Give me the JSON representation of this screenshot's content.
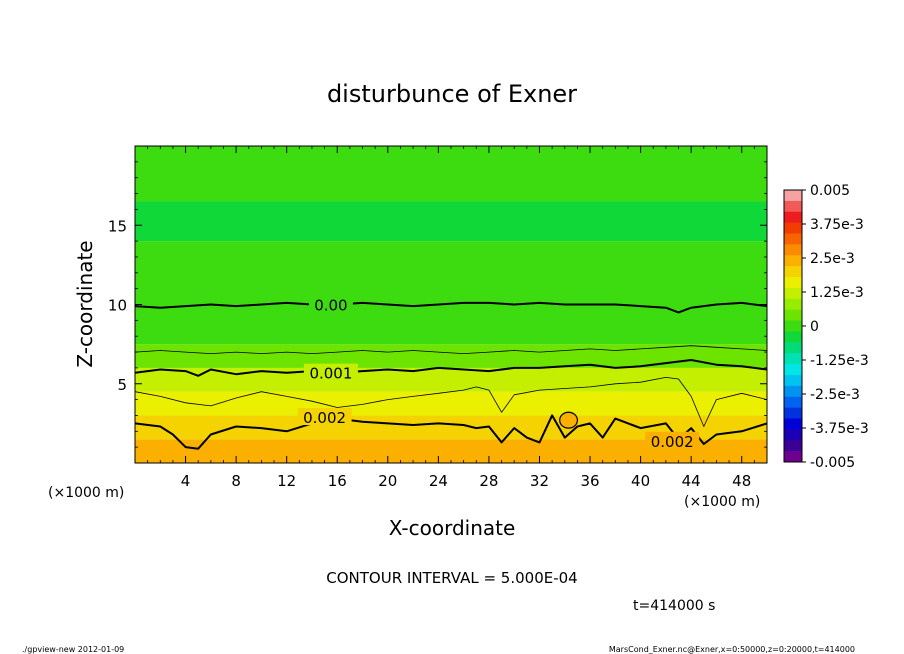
{
  "chart_data": {
    "type": "heatmap",
    "title": "disturbunce of Exner",
    "xlabel": "X-coordinate",
    "ylabel": "Z-coordinate",
    "x_unit": "(×1000 m)",
    "y_unit": "(×1000 m)",
    "xlim": [
      0,
      50
    ],
    "ylim": [
      0,
      20
    ],
    "x_ticks": [
      4,
      8,
      12,
      16,
      20,
      24,
      28,
      32,
      36,
      40,
      44,
      48
    ],
    "y_ticks": [
      5,
      10,
      15
    ],
    "contour_interval_text": "CONTOUR INTERVAL = 5.000E-04",
    "time_text": "t=414000 s",
    "colorbar": {
      "range": [
        -0.005,
        0.005
      ],
      "labels": [
        "0.005",
        "3.75e-3",
        "2.5e-3",
        "1.25e-3",
        "0",
        "-1.25e-3",
        "-2.5e-3",
        "-3.75e-3",
        "-0.005"
      ],
      "colors": [
        "#f6a2a2",
        "#f25a5a",
        "#ee1c1c",
        "#f23c00",
        "#f86400",
        "#fb8c00",
        "#fbb000",
        "#f5d300",
        "#eaf000",
        "#c4f000",
        "#98ec00",
        "#6ce400",
        "#3ddc10",
        "#10d838",
        "#00dc78",
        "#00e2b4",
        "#00e6e6",
        "#00c4f0",
        "#0094f0",
        "#0064f0",
        "#0032e0",
        "#0000d8",
        "#1e00b4",
        "#3c0096",
        "#6e0090"
      ]
    },
    "contour_labels": [
      {
        "text": "0.00",
        "x": 15.5,
        "z": 10.0
      },
      {
        "text": "0.001",
        "x": 15.5,
        "z": 5.7
      },
      {
        "text": "0.002",
        "x": 15.0,
        "z": 2.9
      },
      {
        "text": "0.002",
        "x": 42.5,
        "z": 1.4
      }
    ],
    "field_bands": [
      {
        "z_from": 0.0,
        "z_to": 1.5,
        "value": 0.0023
      },
      {
        "z_from": 1.5,
        "z_to": 3.0,
        "value": 0.002
      },
      {
        "z_from": 3.0,
        "z_to": 4.5,
        "value": 0.0015
      },
      {
        "z_from": 4.5,
        "z_to": 6.0,
        "value": 0.0011
      },
      {
        "z_from": 6.0,
        "z_to": 7.5,
        "value": 0.0006
      },
      {
        "z_from": 7.5,
        "z_to": 10.0,
        "value": 0.0002
      },
      {
        "z_from": 10.0,
        "z_to": 14.0,
        "value": -0.0001
      },
      {
        "z_from": 14.0,
        "z_to": 16.5,
        "value": -0.0003
      },
      {
        "z_from": 16.5,
        "z_to": 20.0,
        "value": -0.0001
      }
    ],
    "contours": [
      {
        "level": 0.0,
        "bold": true,
        "points": [
          [
            0,
            9.9
          ],
          [
            2,
            9.8
          ],
          [
            4,
            9.9
          ],
          [
            6,
            10.0
          ],
          [
            8,
            9.9
          ],
          [
            10,
            10.0
          ],
          [
            12,
            10.1
          ],
          [
            14,
            10.0
          ],
          [
            16,
            10.0
          ],
          [
            18,
            10.1
          ],
          [
            20,
            10.0
          ],
          [
            22,
            9.9
          ],
          [
            24,
            10.0
          ],
          [
            26,
            10.1
          ],
          [
            28,
            10.1
          ],
          [
            30,
            10.0
          ],
          [
            32,
            10.1
          ],
          [
            34,
            10.0
          ],
          [
            36,
            10.0
          ],
          [
            38,
            10.0
          ],
          [
            40,
            9.9
          ],
          [
            42,
            9.8
          ],
          [
            43,
            9.5
          ],
          [
            44,
            9.8
          ],
          [
            46,
            10.0
          ],
          [
            48,
            10.1
          ],
          [
            50,
            9.9
          ]
        ]
      },
      {
        "level": 0.0005,
        "bold": false,
        "points": [
          [
            0,
            7.0
          ],
          [
            2,
            7.1
          ],
          [
            4,
            7.0
          ],
          [
            6,
            6.9
          ],
          [
            8,
            7.0
          ],
          [
            10,
            6.9
          ],
          [
            12,
            7.0
          ],
          [
            14,
            6.9
          ],
          [
            16,
            7.0
          ],
          [
            18,
            7.1
          ],
          [
            20,
            7.0
          ],
          [
            22,
            7.1
          ],
          [
            24,
            7.0
          ],
          [
            26,
            6.9
          ],
          [
            28,
            7.0
          ],
          [
            30,
            7.1
          ],
          [
            32,
            7.0
          ],
          [
            34,
            7.1
          ],
          [
            36,
            7.2
          ],
          [
            38,
            7.1
          ],
          [
            40,
            7.2
          ],
          [
            42,
            7.3
          ],
          [
            44,
            7.4
          ],
          [
            46,
            7.3
          ],
          [
            48,
            7.2
          ],
          [
            50,
            7.1
          ]
        ]
      },
      {
        "level": 0.001,
        "bold": true,
        "points": [
          [
            0,
            5.7
          ],
          [
            2,
            5.9
          ],
          [
            4,
            5.8
          ],
          [
            5,
            5.5
          ],
          [
            6,
            5.9
          ],
          [
            8,
            5.6
          ],
          [
            10,
            5.8
          ],
          [
            12,
            5.7
          ],
          [
            14,
            5.8
          ],
          [
            16,
            5.7
          ],
          [
            18,
            5.8
          ],
          [
            20,
            5.9
          ],
          [
            22,
            5.8
          ],
          [
            24,
            6.0
          ],
          [
            26,
            5.9
          ],
          [
            28,
            5.8
          ],
          [
            30,
            6.0
          ],
          [
            32,
            6.0
          ],
          [
            34,
            6.1
          ],
          [
            36,
            6.2
          ],
          [
            38,
            6.0
          ],
          [
            40,
            6.1
          ],
          [
            42,
            6.3
          ],
          [
            44,
            6.5
          ],
          [
            46,
            6.2
          ],
          [
            48,
            6.1
          ],
          [
            50,
            5.9
          ]
        ]
      },
      {
        "level": 0.0015,
        "bold": false,
        "points": [
          [
            0,
            4.5
          ],
          [
            2,
            4.2
          ],
          [
            4,
            3.8
          ],
          [
            6,
            3.6
          ],
          [
            8,
            4.1
          ],
          [
            10,
            4.5
          ],
          [
            12,
            4.2
          ],
          [
            14,
            3.9
          ],
          [
            16,
            3.5
          ],
          [
            18,
            3.7
          ],
          [
            20,
            4.0
          ],
          [
            22,
            4.2
          ],
          [
            24,
            4.4
          ],
          [
            26,
            4.6
          ],
          [
            27,
            4.8
          ],
          [
            28,
            4.6
          ],
          [
            29,
            3.2
          ],
          [
            30,
            4.3
          ],
          [
            32,
            4.6
          ],
          [
            34,
            4.7
          ],
          [
            36,
            4.8
          ],
          [
            38,
            5.0
          ],
          [
            40,
            5.1
          ],
          [
            42,
            5.4
          ],
          [
            43,
            5.3
          ],
          [
            44,
            4.2
          ],
          [
            45,
            2.3
          ],
          [
            46,
            4.0
          ],
          [
            48,
            4.4
          ],
          [
            50,
            4.0
          ]
        ]
      },
      {
        "level": 0.002,
        "bold": true,
        "points": [
          [
            0,
            2.5
          ],
          [
            2,
            2.3
          ],
          [
            3,
            1.8
          ],
          [
            4,
            1.0
          ],
          [
            5,
            0.9
          ],
          [
            6,
            1.8
          ],
          [
            8,
            2.3
          ],
          [
            10,
            2.2
          ],
          [
            12,
            2.0
          ],
          [
            14,
            2.5
          ],
          [
            16,
            2.8
          ],
          [
            18,
            2.6
          ],
          [
            20,
            2.5
          ],
          [
            22,
            2.4
          ],
          [
            24,
            2.5
          ],
          [
            26,
            2.4
          ],
          [
            27,
            2.2
          ],
          [
            28,
            2.3
          ],
          [
            29,
            1.3
          ],
          [
            30,
            2.2
          ],
          [
            31,
            1.6
          ],
          [
            32,
            1.3
          ],
          [
            33,
            3.0
          ],
          [
            34,
            1.6
          ],
          [
            35,
            2.3
          ],
          [
            36,
            2.5
          ],
          [
            37,
            1.6
          ],
          [
            38,
            2.8
          ],
          [
            40,
            2.2
          ],
          [
            42,
            2.5
          ],
          [
            43,
            1.5
          ],
          [
            44,
            2.2
          ],
          [
            45,
            1.2
          ],
          [
            46,
            1.8
          ],
          [
            48,
            2.0
          ],
          [
            50,
            2.5
          ]
        ]
      }
    ],
    "contour_rings": [
      {
        "level": 0.002,
        "x": 34.3,
        "z": 2.7,
        "rx": 0.7,
        "rz": 0.5
      }
    ]
  },
  "footer": {
    "program": "./gpview-new  2012-01-09",
    "source": "MarsCond_Exner.nc@Exner,x=0:50000,z=0:20000,t=414000"
  }
}
